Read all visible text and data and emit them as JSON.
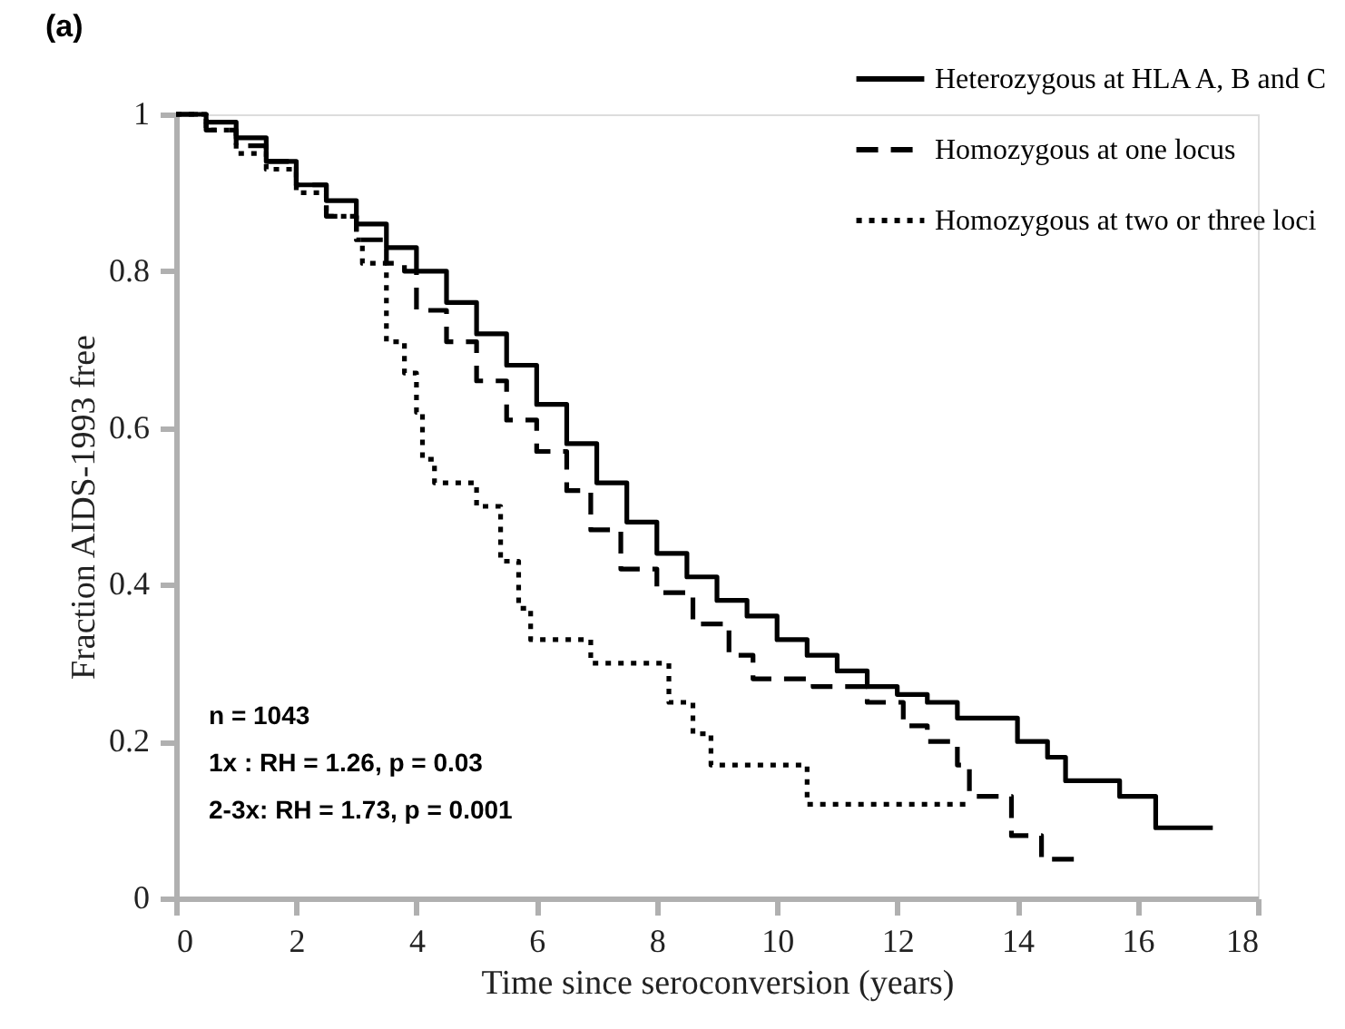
{
  "chart_data": {
    "type": "step",
    "title": "(a)",
    "xlabel": "Time since seroconversion (years)",
    "ylabel": "Fraction AIDS-1993 free",
    "xlim": [
      0,
      18
    ],
    "xticks": [
      0,
      2,
      4,
      6,
      8,
      10,
      12,
      14,
      16,
      18
    ],
    "ylim": [
      0,
      1
    ],
    "yticks": [
      0,
      0.2,
      0.4,
      0.6,
      0.8,
      1
    ],
    "grid": false,
    "legend": "top right",
    "marker": "none",
    "series": [
      {
        "name": "Heterozygous at HLA A, B and C",
        "color": "#000000",
        "line_style": "solid",
        "x": [
          0,
          0.5,
          1,
          1.5,
          2,
          2.5,
          3,
          3.5,
          4,
          4.5,
          5,
          5.5,
          6,
          6.5,
          7,
          7.5,
          8,
          8.5,
          9,
          9.5,
          10,
          10.5,
          11,
          11.5,
          12,
          12.5,
          13,
          13.5,
          14,
          14.5,
          14.8,
          15.7,
          16.3,
          17.25
        ],
        "values": [
          1,
          0.99,
          0.97,
          0.94,
          0.91,
          0.89,
          0.86,
          0.83,
          0.8,
          0.76,
          0.72,
          0.68,
          0.63,
          0.58,
          0.53,
          0.48,
          0.44,
          0.41,
          0.38,
          0.36,
          0.33,
          0.31,
          0.29,
          0.27,
          0.26,
          0.25,
          0.23,
          0.23,
          0.2,
          0.18,
          0.15,
          0.13,
          0.09,
          0.09
        ]
      },
      {
        "name": "Homozygous at one locus",
        "color": "#000000",
        "line_style": "dashed",
        "x": [
          0,
          0.5,
          1,
          1.5,
          2,
          2.5,
          3,
          3.5,
          3.8,
          4,
          4.5,
          5,
          5.5,
          6,
          6.5,
          6.9,
          7.4,
          8,
          8.6,
          9.2,
          9.6,
          10.6,
          11.5,
          12.1,
          12.5,
          13,
          13.2,
          13.9,
          14.4,
          15
        ],
        "values": [
          1,
          0.98,
          0.96,
          0.94,
          0.91,
          0.87,
          0.84,
          0.81,
          0.8,
          0.75,
          0.71,
          0.66,
          0.61,
          0.57,
          0.52,
          0.47,
          0.42,
          0.39,
          0.35,
          0.31,
          0.28,
          0.27,
          0.25,
          0.22,
          0.2,
          0.17,
          0.13,
          0.08,
          0.05,
          0.05
        ]
      },
      {
        "name": "Homozygous at two or three loci",
        "color": "#000000",
        "line_style": "dotted",
        "x": [
          0,
          0.5,
          1,
          1.5,
          2,
          2.5,
          3,
          3.1,
          3.5,
          3.8,
          4,
          4.1,
          4.3,
          5,
          5.4,
          5.7,
          5.9,
          6.9,
          8.2,
          8.6,
          8.9,
          10.5,
          13.2
        ],
        "values": [
          1,
          0.98,
          0.95,
          0.93,
          0.9,
          0.87,
          0.84,
          0.81,
          0.71,
          0.67,
          0.62,
          0.56,
          0.53,
          0.5,
          0.43,
          0.37,
          0.33,
          0.3,
          0.25,
          0.21,
          0.17,
          0.12,
          0.12
        ]
      }
    ],
    "annotations": [
      "n = 1043",
      "1x :   RH = 1.26,    p = 0.03",
      "2-3x:  RH = 1.73,    p = 0.001"
    ]
  }
}
